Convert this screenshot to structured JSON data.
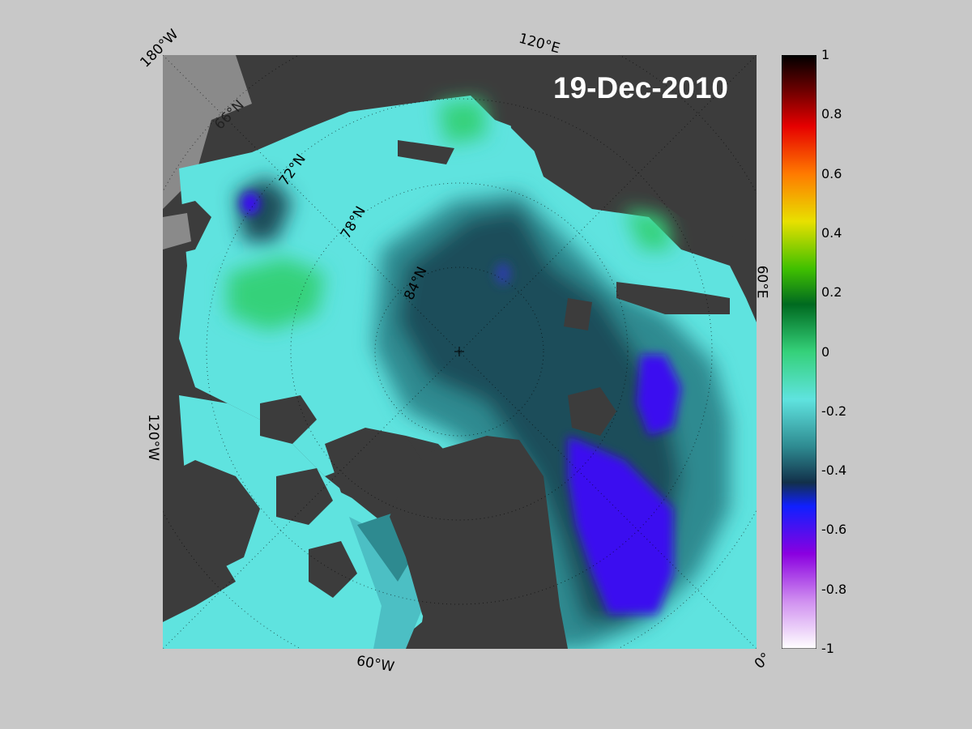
{
  "title": "19-Dec-2010",
  "longitude_labels": [
    "180°W",
    "120°E",
    "60°E",
    "0°",
    "60°W",
    "120°W"
  ],
  "latitude_labels": [
    "66°N",
    "72°N",
    "78°N",
    "84°N"
  ],
  "colorbar": {
    "ticks": [
      "1",
      "0.8",
      "0.6",
      "0.4",
      "0.2",
      "0",
      "-0.2",
      "-0.4",
      "-0.6",
      "-0.8",
      "-1"
    ],
    "range": [
      -1,
      1
    ]
  },
  "colors": {
    "background": "#c8c8c8",
    "land": "#3c3c3c",
    "missing": "#8a8a8a",
    "ice_low": "#5fe3df",
    "ice_mid": "#2e8a90",
    "ice_dark": "#1f4d5a",
    "ice_min": "#3a10f0",
    "positive": "#35d17a"
  }
}
